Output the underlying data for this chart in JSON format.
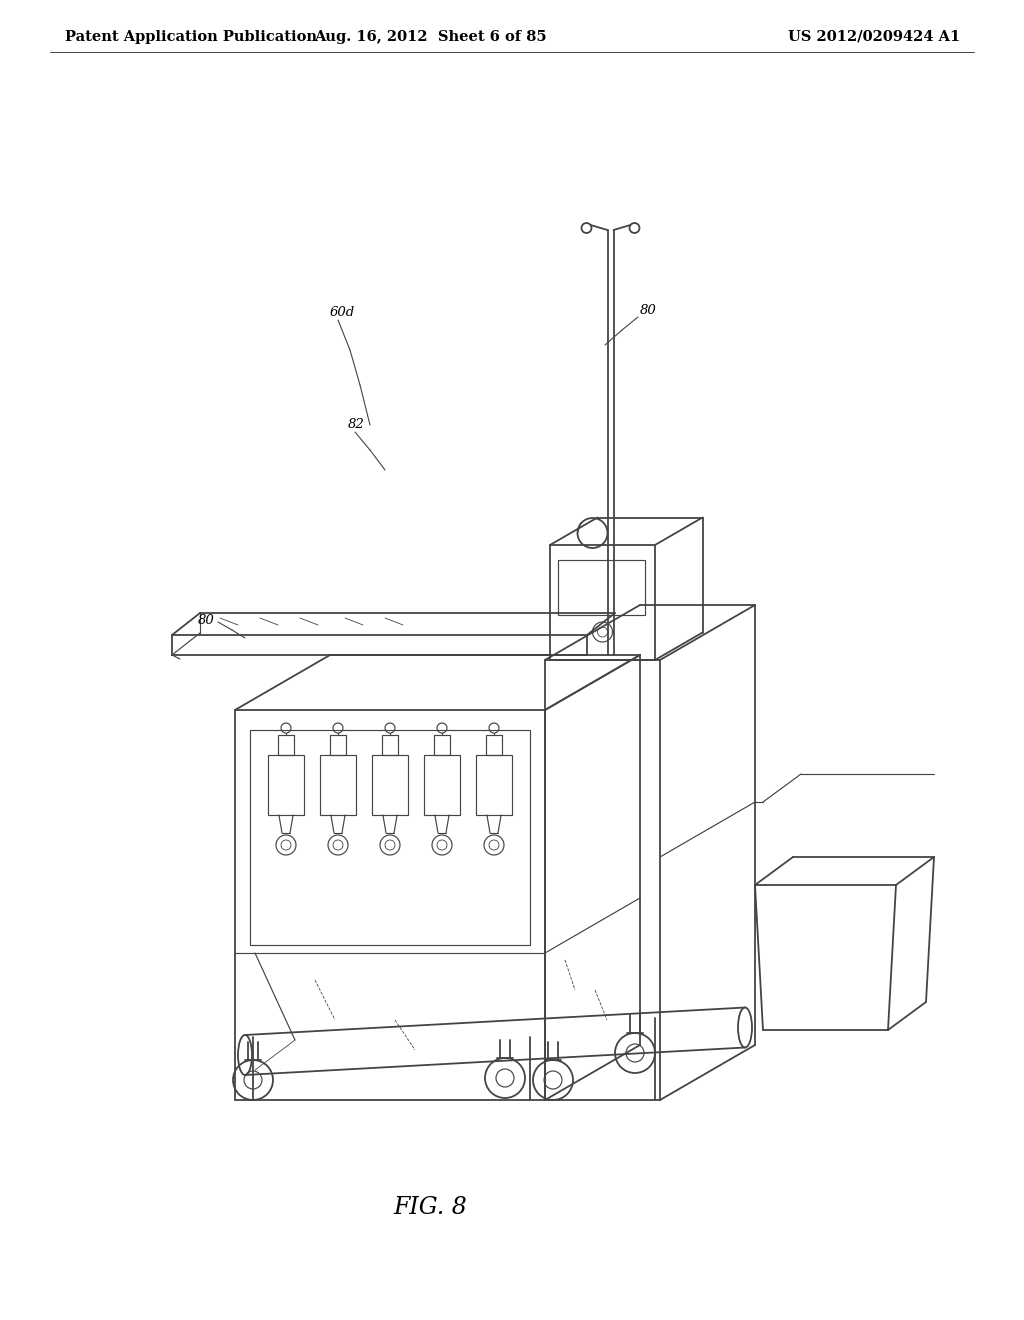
{
  "header_left": "Patent Application Publication",
  "header_mid": "Aug. 16, 2012  Sheet 6 of 85",
  "header_right": "US 2012/0209424 A1",
  "figure_label": "FIG. 8",
  "background_color": "#ffffff",
  "line_color": "#444444",
  "text_color": "#000000",
  "header_fontsize": 10.5,
  "fig_label_fontsize": 17
}
